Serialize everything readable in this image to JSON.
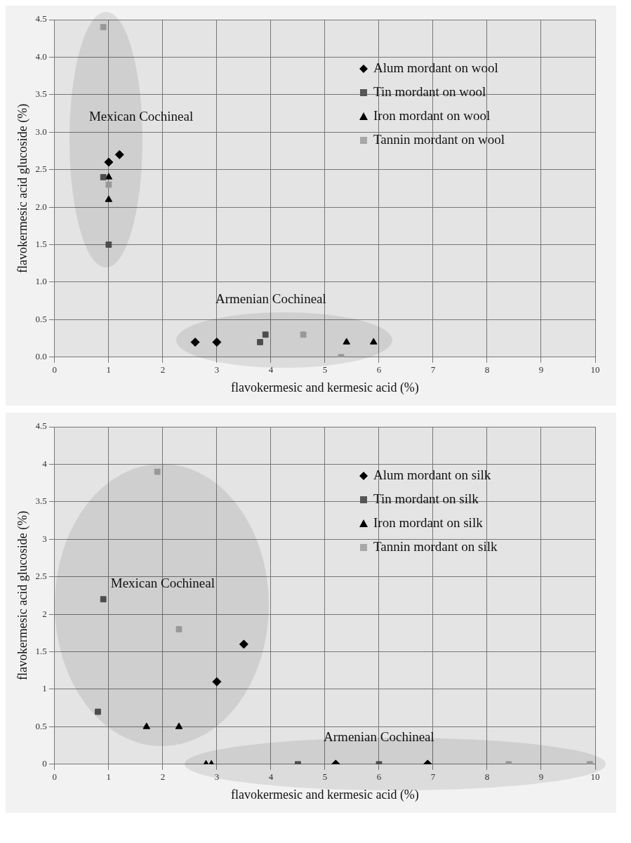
{
  "chart_data": [
    {
      "type": "scatter",
      "xlabel": "flavokermesic and kermesic acid (%)",
      "ylabel": "flavokermesic acid glucoside (%)",
      "xlim": [
        0,
        10
      ],
      "xticks": [
        0,
        1,
        2,
        3,
        4,
        5,
        6,
        7,
        8,
        9,
        10
      ],
      "ylim": [
        0,
        4.5
      ],
      "yticks": [
        {
          "value": 0,
          "label": "0.0"
        },
        {
          "value": 0.5,
          "label": "0.5"
        },
        {
          "value": 1,
          "label": "1.0"
        },
        {
          "value": 1.5,
          "label": "1.5"
        },
        {
          "value": 2,
          "label": "2.0"
        },
        {
          "value": 2.5,
          "label": "2.5"
        },
        {
          "value": 3,
          "label": "3.0"
        },
        {
          "value": 3.5,
          "label": "3.5"
        },
        {
          "value": 4,
          "label": "4.0"
        },
        {
          "value": 4.5,
          "label": "4.5"
        }
      ],
      "grid": true,
      "legend": "top right",
      "annotations": [
        "Mexican Cochineal",
        "Armenian Cochineal"
      ],
      "series": [
        {
          "name": "Alum mordant on wool",
          "color": "#000000",
          "marker": "diamond",
          "x": [
            1,
            1.2,
            2.6,
            3
          ],
          "values": [
            2.6,
            2.7,
            0.2,
            0.2
          ]
        },
        {
          "name": "Tin mordant on wool",
          "color": "#555555",
          "marker": "square",
          "x": [
            0.9,
            1,
            3.8,
            3.9
          ],
          "values": [
            2.4,
            1.5,
            0.2,
            0.3
          ]
        },
        {
          "name": "Iron mordant on wool",
          "color": "#000000",
          "marker": "triangle",
          "x": [
            1,
            1,
            5.4,
            5.9
          ],
          "values": [
            2.4,
            2.1,
            0.2,
            0.2
          ]
        },
        {
          "name": "Tannin mordant on wool",
          "color": "#a8a8a8",
          "marker": "square",
          "x": [
            0.9,
            1,
            4.6,
            5.3
          ],
          "values": [
            4.4,
            2.3,
            0.3,
            0
          ]
        }
      ]
    },
    {
      "type": "scatter",
      "xlabel": "flavokermesic and kermesic acid (%)",
      "ylabel": "flavokermesic acid glucoside (%)",
      "xlim": [
        0,
        10
      ],
      "xticks": [
        0,
        1,
        2,
        3,
        4,
        5,
        6,
        7,
        8,
        9,
        10
      ],
      "ylim": [
        0,
        4.5
      ],
      "yticks": [
        0,
        0.5,
        1,
        1.5,
        2,
        2.5,
        3,
        3.5,
        4,
        4.5
      ],
      "grid": true,
      "legend": "top right",
      "annotations": [
        "Mexican Cochineal",
        "Armenian Cochineal"
      ],
      "series": [
        {
          "name": "Alum mordant on silk",
          "color": "#000000",
          "marker": "diamond",
          "x": [
            3,
            3.5,
            5.2,
            6.9
          ],
          "values": [
            1.1,
            1.6,
            0,
            0
          ]
        },
        {
          "name": "Tin mordant on silk",
          "color": "#555555",
          "marker": "square",
          "x": [
            0.9,
            0.8,
            4.5,
            6
          ],
          "values": [
            2.2,
            0.7,
            0,
            0
          ]
        },
        {
          "name": "Iron mordant on silk",
          "color": "#000000",
          "marker": "triangle",
          "x": [
            1.7,
            2.3,
            2.8,
            2.9
          ],
          "values": [
            0.5,
            0.5,
            0,
            0
          ]
        },
        {
          "name": "Tannin mordant on silk",
          "color": "#a8a8a8",
          "marker": "square",
          "x": [
            1.9,
            2.3,
            8.4,
            9.9
          ],
          "values": [
            3.9,
            1.8,
            0,
            0
          ]
        }
      ]
    }
  ]
}
